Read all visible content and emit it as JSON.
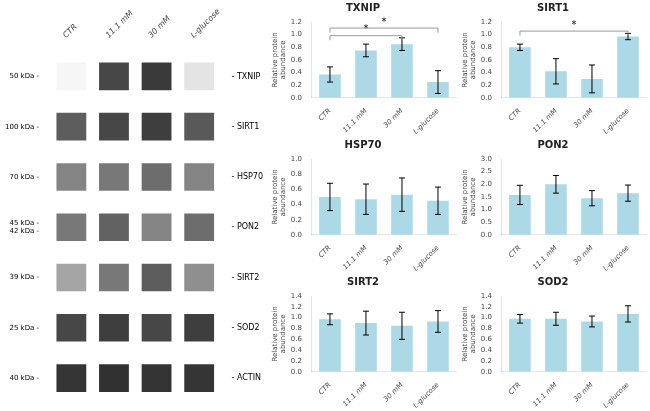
{
  "chart_data": [
    {
      "type": "heatmap",
      "categories": [
        "CTR",
        "11.1 mM",
        "30 mM",
        "L-glucose"
      ],
      "rows": [
        "- TXNIP",
        "- SIRT1",
        "- HSP70",
        "- PON2",
        "- SIRT2",
        "- SOD2",
        "- ACTIN"
      ],
      "kda_labels": [
        [
          "50 kDa -"
        ],
        [
          "100 kDa -"
        ],
        [
          "70 kDa -"
        ],
        [
          "45 kDa -",
          "42 kDa -"
        ],
        [
          "39 kDa -"
        ],
        [
          "25 kDa -"
        ],
        [
          "40 kDa -"
        ]
      ],
      "cells": [
        [
          0.04,
          0.82,
          0.88,
          0.12
        ],
        [
          0.72,
          0.82,
          0.86,
          0.74
        ],
        [
          0.55,
          0.6,
          0.65,
          0.55
        ],
        [
          0.6,
          0.7,
          0.55,
          0.65
        ],
        [
          0.4,
          0.6,
          0.72,
          0.5
        ],
        [
          0.82,
          0.86,
          0.82,
          0.86
        ],
        [
          0.9,
          0.92,
          0.91,
          0.9
        ]
      ],
      "grid": false
    },
    {
      "type": "bar",
      "title": "TXNIP",
      "categories": [
        "CTR",
        "11.1 mM",
        "30 mM",
        "L-glucose"
      ],
      "values": [
        0.37,
        0.75,
        0.85,
        0.25
      ],
      "errors": [
        0.12,
        0.1,
        0.1,
        0.18
      ],
      "color": "#add8e6",
      "ylabel": "Relative protein\nabundance",
      "ylim": [
        0,
        1.2
      ],
      "yticks": [
        {
          "value": 0,
          "label": "0.0"
        },
        0.2,
        0.4,
        0.6,
        0.8,
        {
          "value": 1,
          "label": "1.0"
        },
        1.2
      ],
      "significance": [
        {
          "from": "CTR",
          "to": "30 mM",
          "label": "*"
        },
        {
          "from": "CTR",
          "to": "L-glucose",
          "label": "*"
        }
      ],
      "grid": false
    },
    {
      "type": "bar",
      "title": "SIRT1",
      "categories": [
        "CTR",
        "11.1 mM",
        "30 mM",
        "L-glucose"
      ],
      "values": [
        0.8,
        0.42,
        0.3,
        0.97
      ],
      "errors": [
        0.05,
        0.2,
        0.22,
        0.05
      ],
      "color": "#add8e6",
      "ylabel": "Relative protein\nabundance",
      "ylim": [
        0,
        1.2
      ],
      "yticks": [
        {
          "value": 0,
          "label": "0.0"
        },
        0.2,
        0.4,
        0.6,
        0.8,
        {
          "value": 1,
          "label": "1.0"
        },
        1.2
      ],
      "significance": [
        {
          "from": "CTR",
          "to": "L-glucose",
          "label": "*"
        }
      ],
      "grid": false
    },
    {
      "type": "bar",
      "title": "HSP70",
      "categories": [
        "CTR",
        "11.1 mM",
        "30 mM",
        "L-glucose"
      ],
      "values": [
        0.5,
        0.47,
        0.53,
        0.45
      ],
      "errors": [
        0.18,
        0.2,
        0.22,
        0.18
      ],
      "color": "#add8e6",
      "ylabel": "Relative protein\nabundance",
      "ylim": [
        0,
        1.0
      ],
      "yticks": [
        {
          "value": 0,
          "label": "0.0"
        },
        0.2,
        0.4,
        0.6,
        0.8,
        {
          "value": 1,
          "label": "1.0"
        }
      ],
      "significance": [],
      "grid": false
    },
    {
      "type": "bar",
      "title": "PON2",
      "categories": [
        "CTR",
        "11.1 mM",
        "30 mM",
        "L-glucose"
      ],
      "values": [
        1.58,
        2.0,
        1.45,
        1.65
      ],
      "errors": [
        0.38,
        0.35,
        0.3,
        0.32
      ],
      "color": "#add8e6",
      "ylabel": "Relative protein\nabundance",
      "ylim": [
        0,
        3.0
      ],
      "yticks": [
        {
          "value": 0,
          "label": "0.0"
        },
        0.5,
        {
          "value": 1,
          "label": "1.0"
        },
        1.5,
        {
          "value": 2,
          "label": "2.0"
        },
        2.5,
        {
          "value": 3,
          "label": "3.0"
        }
      ],
      "significance": [],
      "grid": false
    },
    {
      "type": "bar",
      "title": "SIRT2",
      "categories": [
        "CTR",
        "11.1 mM",
        "30 mM",
        "L-glucose"
      ],
      "values": [
        0.97,
        0.9,
        0.85,
        0.93
      ],
      "errors": [
        0.1,
        0.22,
        0.25,
        0.2
      ],
      "color": "#add8e6",
      "ylabel": "Relative protein\nabundance",
      "ylim": [
        0,
        1.4
      ],
      "yticks": [
        {
          "value": 0,
          "label": "0.0"
        },
        0.2,
        0.4,
        0.6,
        0.8,
        {
          "value": 1,
          "label": "1.0"
        },
        1.2,
        1.4
      ],
      "significance": [],
      "grid": false
    },
    {
      "type": "bar",
      "title": "SOD2",
      "categories": [
        "CTR",
        "11.1 mM",
        "30 mM",
        "L-glucose"
      ],
      "values": [
        0.98,
        0.98,
        0.93,
        1.07
      ],
      "errors": [
        0.08,
        0.12,
        0.1,
        0.15
      ],
      "color": "#add8e6",
      "ylabel": "Relative protein\nabundance",
      "ylim": [
        0,
        1.4
      ],
      "yticks": [
        {
          "value": 0,
          "label": "0.0"
        },
        0.2,
        0.4,
        0.6,
        0.8,
        {
          "value": 1,
          "label": "1.0"
        },
        1.2,
        1.4
      ],
      "significance": [],
      "grid": false
    }
  ]
}
